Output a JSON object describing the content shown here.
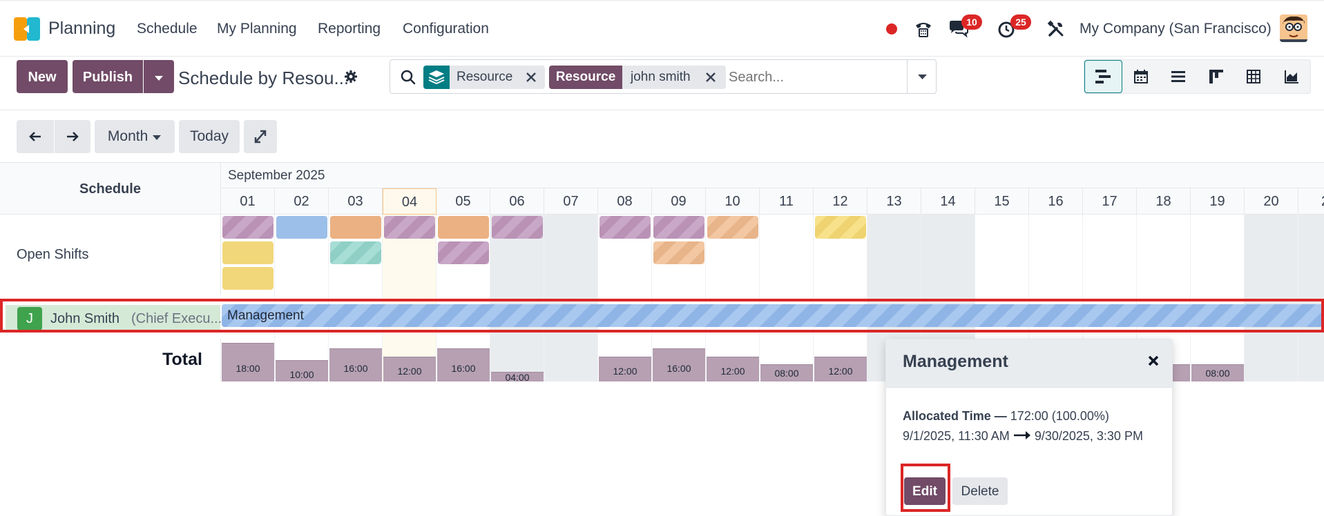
{
  "nav": {
    "app_name": "Planning",
    "menu": [
      "Schedule",
      "My Planning",
      "Reporting",
      "Configuration"
    ],
    "messages_count": "10",
    "activities_count": "25",
    "company": "My Company (San Francisco)"
  },
  "control": {
    "new_label": "New",
    "publish_label": "Publish",
    "page_title": "Schedule by Resou...",
    "search": {
      "facet_group_label": "Resource",
      "facet_field_label": "Resource",
      "facet_field_value": "john smith",
      "placeholder": "Search..."
    }
  },
  "toolbar": {
    "scale_label": "Month",
    "today_label": "Today"
  },
  "gantt": {
    "header_label": "Schedule",
    "month_label": "September 2025",
    "days": [
      "01",
      "02",
      "03",
      "04",
      "05",
      "06",
      "07",
      "08",
      "09",
      "10",
      "11",
      "12",
      "13",
      "14",
      "15",
      "16",
      "17",
      "18",
      "19",
      "20",
      "2"
    ],
    "rows": {
      "open_shifts_label": "Open Shifts",
      "resource_initial": "J",
      "resource_name": "John Smith",
      "resource_role": "(Chief Execu..."
    },
    "bar_label": "Management",
    "total_label": "Total",
    "totals": [
      "18:00",
      "10:00",
      "16:00",
      "12:00",
      "16:00",
      "04:00",
      "",
      "12:00",
      "16:00",
      "12:00",
      "08:00",
      "12:00",
      "",
      "",
      "",
      "",
      "",
      "0",
      "08:00"
    ],
    "total_fill": [
      1.0,
      0.55,
      0.85,
      0.65,
      0.85,
      0.25,
      0,
      0.65,
      0.85,
      0.65,
      0.45,
      0.65,
      0,
      0,
      0,
      0,
      0,
      0.45,
      0.45
    ]
  },
  "popover": {
    "title": "Management",
    "allocated_label": "Allocated Time —",
    "allocated_value": "172:00 (100.00%)",
    "date_range_start": "9/1/2025, 11:30 AM",
    "date_range_end": "9/30/2025, 3:30 PM",
    "edit_label": "Edit",
    "delete_label": "Delete"
  },
  "colors": {
    "brand": "#714b67",
    "accent": "#017e84",
    "highlight": "#dc2626"
  }
}
